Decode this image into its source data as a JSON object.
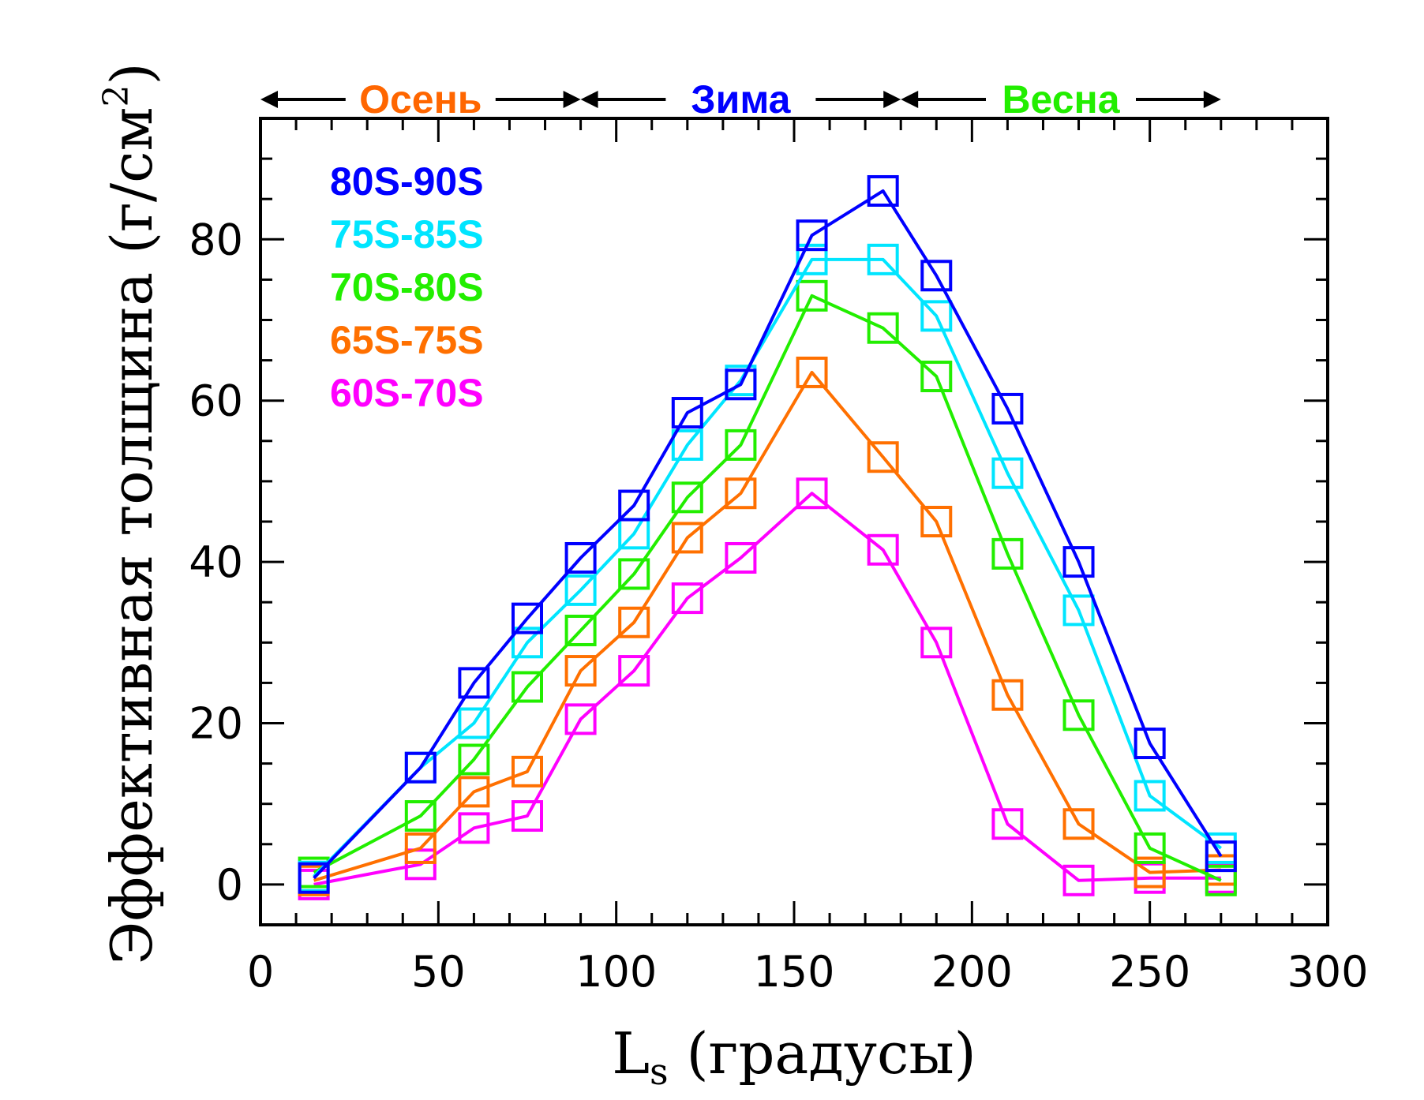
{
  "chart_data": {
    "type": "line",
    "xlabel": {
      "main": "L",
      "sub": "s",
      "rest": " (градусы)"
    },
    "ylabel": {
      "main": "Эффективная толщина (г/см",
      "sup": "2",
      "close": ")"
    },
    "xlim": [
      0,
      300
    ],
    "ylim": [
      -5,
      95
    ],
    "xticks": [
      0,
      50,
      100,
      150,
      200,
      250,
      300
    ],
    "yticks": [
      0,
      20,
      40,
      60,
      80
    ],
    "x": [
      15,
      45,
      60,
      75,
      90,
      105,
      120,
      135,
      155,
      175,
      190,
      210,
      230,
      250,
      270
    ],
    "series": [
      {
        "name": "80S-90S",
        "color": "#0000ff",
        "values": [
          0.8,
          14.5,
          25,
          33,
          40.5,
          47,
          58.5,
          62,
          80.5,
          86,
          75.5,
          59,
          40,
          17.5,
          3.5
        ]
      },
      {
        "name": "75S-85S",
        "color": "#00e5ff",
        "values": [
          1,
          14.5,
          20,
          30,
          36.5,
          43.5,
          54.5,
          62.5,
          77.5,
          77.5,
          70.5,
          51,
          34,
          11,
          4.5
        ]
      },
      {
        "name": "70S-80S",
        "color": "#22ee00",
        "values": [
          1.5,
          8.5,
          15.5,
          24.5,
          31.5,
          38.5,
          48,
          54.5,
          73,
          69,
          63,
          41,
          21,
          4.5,
          0.5
        ]
      },
      {
        "name": "65S-75S",
        "color": "#ff7000",
        "values": [
          0.5,
          4.5,
          11.5,
          14,
          26.5,
          32.5,
          43,
          48.5,
          63.5,
          53,
          45,
          23.5,
          7.5,
          1.5,
          1.8
        ]
      },
      {
        "name": "60S-70S",
        "color": "#ff00ff",
        "values": [
          0,
          2.5,
          7,
          8.5,
          20.5,
          26.5,
          35.5,
          40.5,
          48.5,
          41.5,
          30,
          7.5,
          0.5,
          0.8,
          0.8
        ]
      }
    ],
    "seasons": [
      {
        "label": "Осень",
        "color": "#ff6600",
        "start": 0,
        "end": 90
      },
      {
        "label": "Зима",
        "color": "#0000ff",
        "start": 90,
        "end": 180
      },
      {
        "label": "Весна",
        "color": "#22ee00",
        "start": 180,
        "end": 270
      }
    ],
    "legend_position": "top-left",
    "grid": false
  }
}
